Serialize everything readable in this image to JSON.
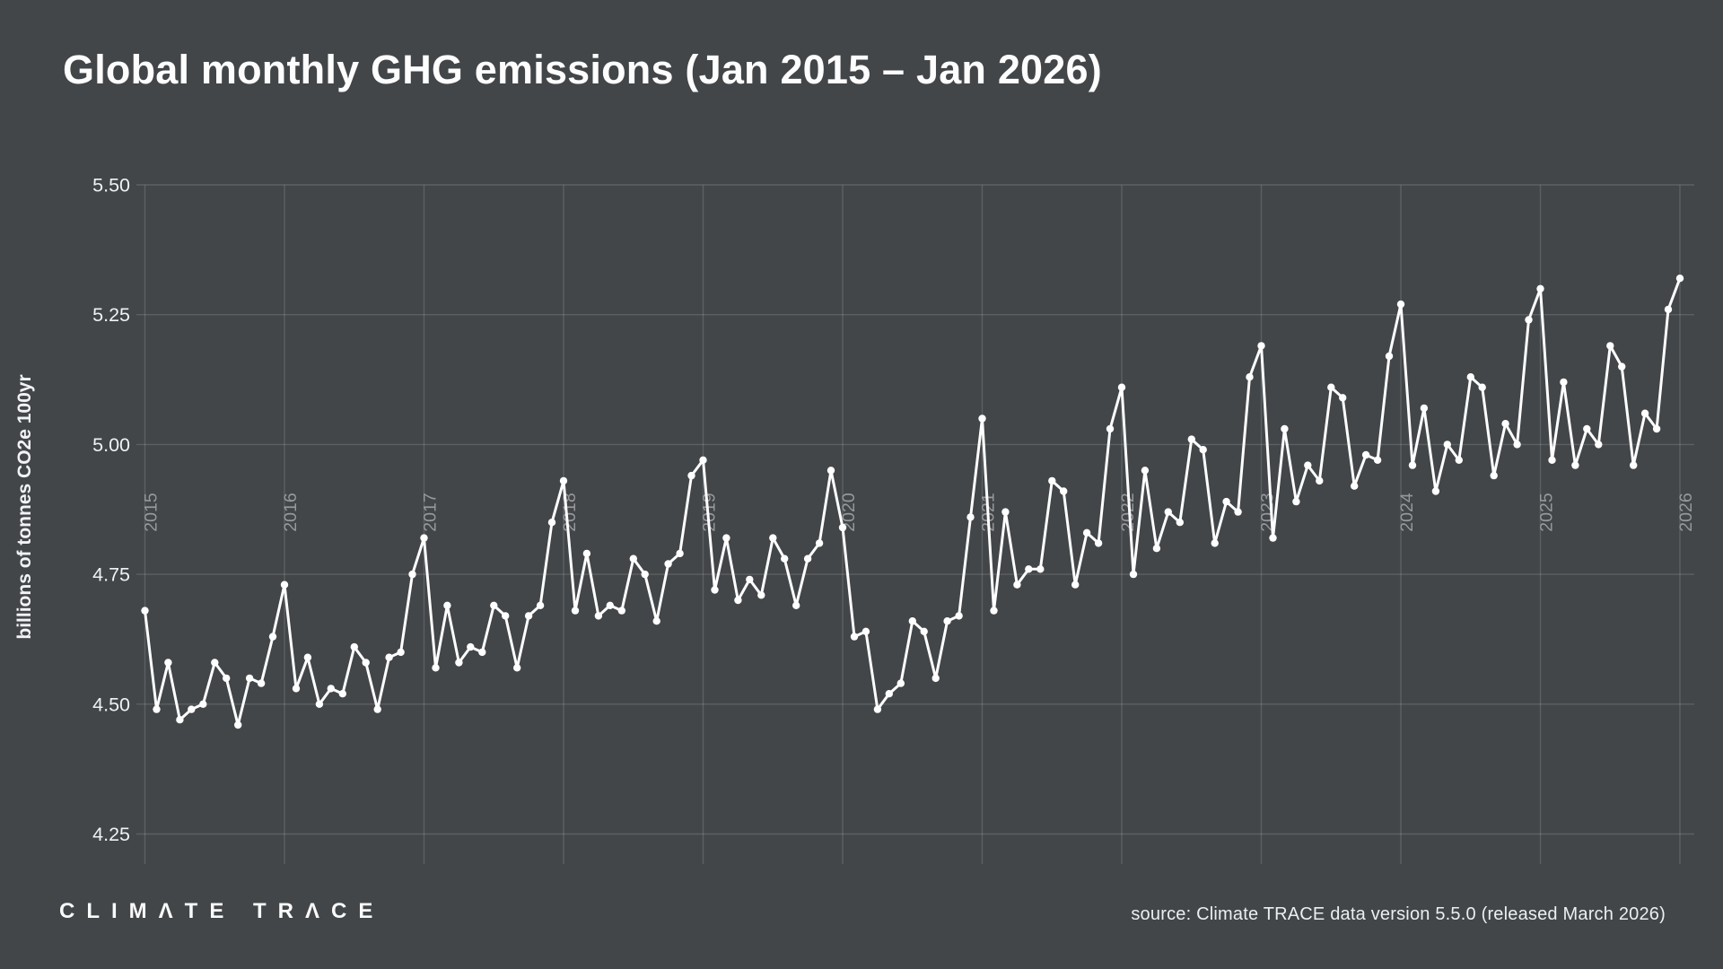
{
  "header": {
    "title": "Global monthly GHG emissions (Jan 2015 – Jan 2026)"
  },
  "footer": {
    "logo_text": "CLIMΛTE TRΛCE",
    "source": "source: Climate TRACE data version 5.5.0 (released March 2026)"
  },
  "colors": {
    "background": "#424649",
    "line": "#ffffff",
    "gridline": "rgba(255,255,255,0.14)",
    "tick_label": "#f0f1f2",
    "year_label": "#97999c"
  },
  "chart_data": {
    "type": "line",
    "title": "Global monthly GHG emissions (Jan 2015 – Jan 2026)",
    "xlabel": "",
    "ylabel": "billions of tonnes CO2e 100yr",
    "x_start": "2015-01",
    "x_end": "2026-01",
    "x_frequency": "monthly",
    "x_tick_labels": [
      "2015",
      "2016",
      "2017",
      "2018",
      "2019",
      "2020",
      "2021",
      "2022",
      "2023",
      "2024",
      "2025",
      "2026"
    ],
    "y_ticks": [
      5.5,
      5.25,
      5.0,
      4.75,
      4.5,
      4.25
    ],
    "ylim": [
      4.25,
      5.5
    ],
    "grid": true,
    "legend": "none",
    "marker": "circle",
    "series": [
      {
        "name": "Global monthly GHG emissions",
        "unit": "billions of tonnes CO2e (GWP 100yr)",
        "values": [
          4.68,
          4.49,
          4.58,
          4.47,
          4.49,
          4.5,
          4.58,
          4.55,
          4.46,
          4.55,
          4.54,
          4.63,
          4.73,
          4.53,
          4.59,
          4.5,
          4.53,
          4.52,
          4.61,
          4.58,
          4.49,
          4.59,
          4.6,
          4.75,
          4.82,
          4.57,
          4.69,
          4.58,
          4.61,
          4.6,
          4.69,
          4.67,
          4.57,
          4.67,
          4.69,
          4.85,
          4.93,
          4.68,
          4.79,
          4.67,
          4.69,
          4.68,
          4.78,
          4.75,
          4.66,
          4.77,
          4.79,
          4.94,
          4.97,
          4.72,
          4.82,
          4.7,
          4.74,
          4.71,
          4.82,
          4.78,
          4.69,
          4.78,
          4.81,
          4.95,
          4.84,
          4.63,
          4.64,
          4.49,
          4.52,
          4.54,
          4.66,
          4.64,
          4.55,
          4.66,
          4.67,
          4.86,
          5.05,
          4.68,
          4.87,
          4.73,
          4.76,
          4.76,
          4.93,
          4.91,
          4.73,
          4.83,
          4.81,
          5.03,
          5.11,
          4.75,
          4.95,
          4.8,
          4.87,
          4.85,
          5.01,
          4.99,
          4.81,
          4.89,
          4.87,
          5.13,
          5.19,
          4.82,
          5.03,
          4.89,
          4.96,
          4.93,
          5.11,
          5.09,
          4.92,
          4.98,
          4.97,
          5.17,
          5.27,
          4.96,
          5.07,
          4.91,
          5.0,
          4.97,
          5.13,
          5.11,
          4.94,
          5.04,
          5.0,
          5.24,
          5.3,
          4.97,
          5.12,
          4.96,
          5.03,
          5.0,
          5.19,
          5.15,
          4.96,
          5.06,
          5.03,
          5.26,
          5.32
        ]
      }
    ]
  }
}
